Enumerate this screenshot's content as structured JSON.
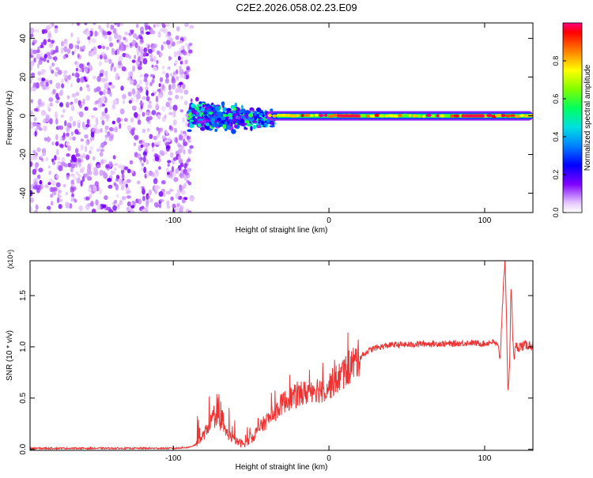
{
  "title": "C2E2.2026.058.02.23.E09",
  "chart_data": [
    {
      "type": "heatmap",
      "title": "C2E2.2026.058.02.23.E09",
      "xlabel": "Height of straight line (km)",
      "ylabel": "Frequency (Hz)",
      "xlim": [
        -192,
        131
      ],
      "ylim": [
        -50,
        48
      ],
      "xticks": [
        -100,
        0,
        100
      ],
      "xtick_labels": [
        "-100",
        "0",
        "100"
      ],
      "yticks": [
        -40,
        -20,
        0,
        20,
        40
      ],
      "ytick_labels": [
        "-40",
        "-20",
        "0",
        "20",
        "40"
      ],
      "colorbar": {
        "label": "Normalized spectral amplitude",
        "range": [
          0,
          1
        ],
        "ticks": [
          0.0,
          0.2,
          0.4,
          0.6,
          0.8
        ],
        "tick_labels": [
          "0.0",
          "0.2",
          "0.4",
          "0.6",
          "0.8"
        ],
        "colors": [
          "#ffffff",
          "#e0b0ff",
          "#8000ff",
          "#0000ff",
          "#00c0ff",
          "#00ff80",
          "#80ff00",
          "#ffff00",
          "#ff8000",
          "#ff0000",
          "#ff0080"
        ]
      },
      "features": [
        {
          "name": "broadband noise",
          "x_range": [
            -192,
            -88
          ],
          "freq_range": [
            -50,
            48
          ],
          "amplitude": 0.1
        },
        {
          "name": "scattered transition",
          "x_range": [
            -90,
            -35
          ],
          "freq_center": 0,
          "freq_spread": 8,
          "amplitude": 0.35
        },
        {
          "name": "central carrier line",
          "x_range": [
            -40,
            131
          ],
          "freq_center": 0,
          "amplitude": 0.85
        }
      ]
    },
    {
      "type": "line",
      "title": "",
      "xlabel": "Height of straight line (km)",
      "ylabel": "SNR (10 * v/v)",
      "y_multiplier": "(x10⁴)",
      "xlim": [
        -192,
        131
      ],
      "ylim": [
        -0.01,
        1.84
      ],
      "xticks": [
        -100,
        0,
        100
      ],
      "xtick_labels": [
        "-100",
        "0",
        "100"
      ],
      "yticks": [
        0.0,
        0.5,
        1.0,
        1.5
      ],
      "ytick_labels": [
        "0.0",
        "0.5",
        "1.0",
        "1.5"
      ],
      "color": "#ee3333",
      "series": [
        {
          "name": "SNR",
          "x": [
            -192,
            -180,
            -160,
            -140,
            -120,
            -100,
            -90,
            -85,
            -80,
            -75,
            -70,
            -65,
            -60,
            -55,
            -50,
            -45,
            -40,
            -35,
            -30,
            -25,
            -20,
            -15,
            -10,
            -5,
            0,
            5,
            10,
            15,
            20,
            25,
            30,
            40,
            50,
            60,
            70,
            80,
            90,
            100,
            105,
            108,
            110,
            112,
            113,
            114,
            115,
            116,
            117,
            118,
            119,
            120,
            122,
            125,
            128,
            131
          ],
          "y": [
            0.01,
            0.01,
            0.01,
            0.01,
            0.01,
            0.01,
            0.02,
            0.05,
            0.15,
            0.3,
            0.25,
            0.15,
            0.08,
            0.05,
            0.1,
            0.2,
            0.28,
            0.35,
            0.45,
            0.5,
            0.52,
            0.55,
            0.6,
            0.58,
            0.62,
            0.68,
            0.75,
            0.83,
            0.9,
            0.96,
            0.99,
            1.02,
            1.02,
            1.03,
            1.03,
            1.03,
            1.04,
            1.03,
            1.05,
            1.02,
            0.9,
            1.6,
            1.86,
            1.3,
            0.55,
            0.8,
            1.65,
            1.1,
            0.9,
            1.0,
            1.0,
            1.01,
            1.02,
            1.01
          ]
        }
      ]
    }
  ]
}
